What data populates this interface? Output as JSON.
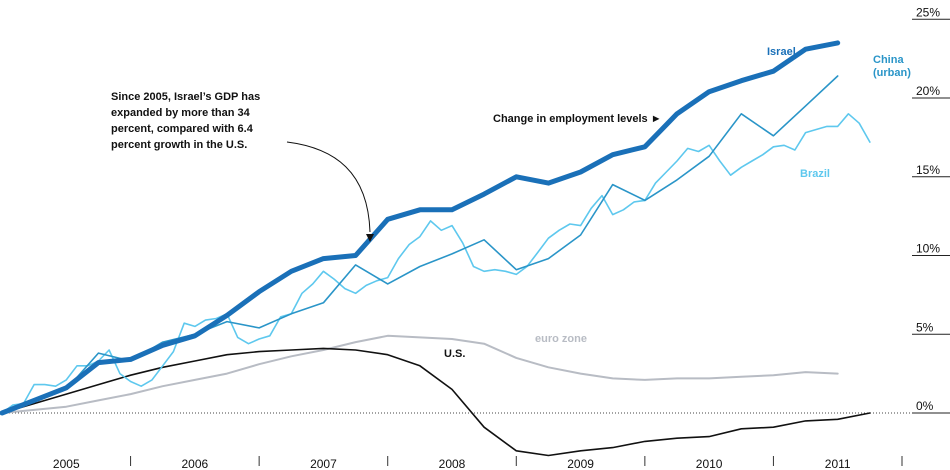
{
  "chart_data": {
    "type": "line",
    "xlim": [
      2005.0,
      2012.0
    ],
    "ylim": [
      -4,
      25
    ],
    "y_ticks": [
      {
        "value": 0,
        "label": "0%"
      },
      {
        "value": 5,
        "label": "5%"
      },
      {
        "value": 10,
        "label": "10%"
      },
      {
        "value": 15,
        "label": "15%"
      },
      {
        "value": 20,
        "label": "20%"
      },
      {
        "value": 25,
        "label": "25%"
      }
    ],
    "x_ticks": [
      "2005",
      "2006",
      "2007",
      "2008",
      "2009",
      "2010",
      "2011"
    ],
    "grid": false,
    "colors": {
      "israel": "#1a70b8",
      "china": "#2a95c8",
      "brazil": "#5ec8ee",
      "euro": "#b8bcc4",
      "us": "#111111",
      "axis": "#444444"
    },
    "annotation": "Since 2005, Israel's GDP has expanded by more than 34 percent, compared with 6.4 percent growth in the U.S.",
    "legend_note": "Change in employment levels ►",
    "series": [
      {
        "name": "Israel",
        "key": "israel",
        "x": [
          2005.0,
          2005.25,
          2005.5,
          2005.75,
          2006.0,
          2006.25,
          2006.5,
          2006.75,
          2007.0,
          2007.25,
          2007.5,
          2007.75,
          2008.0,
          2008.25,
          2008.5,
          2008.75,
          2009.0,
          2009.25,
          2009.5,
          2009.75,
          2010.0,
          2010.25,
          2010.5,
          2010.75,
          2011.0,
          2011.25,
          2011.5
        ],
        "y": [
          0,
          0.8,
          1.6,
          3.2,
          3.4,
          4.3,
          4.9,
          6.2,
          7.7,
          9.0,
          9.8,
          10.0,
          12.3,
          12.9,
          12.9,
          13.9,
          15.0,
          14.6,
          15.3,
          16.4,
          16.9,
          19.0,
          20.4,
          21.1,
          21.7,
          23.1,
          23.5
        ]
      },
      {
        "name": "China (urban)",
        "key": "china",
        "x": [
          2005.0,
          2005.5,
          2005.75,
          2006.0,
          2006.25,
          2006.5,
          2006.75,
          2007.0,
          2007.25,
          2007.5,
          2007.75,
          2008.0,
          2008.25,
          2008.5,
          2008.75,
          2009.0,
          2009.25,
          2009.5,
          2009.75,
          2010.0,
          2010.25,
          2010.5,
          2010.75,
          2011.0,
          2011.25,
          2011.5
        ],
        "y": [
          0,
          1.5,
          3.8,
          3.3,
          4.5,
          5.0,
          5.8,
          5.4,
          6.3,
          7.0,
          9.4,
          8.2,
          9.3,
          10.1,
          11.0,
          9.1,
          9.8,
          11.3,
          14.5,
          13.5,
          14.8,
          16.3,
          19.0,
          17.6,
          19.5,
          21.4
        ]
      },
      {
        "name": "Brazil",
        "key": "brazil",
        "x": [
          2005.0,
          2005.083,
          2005.167,
          2005.25,
          2005.333,
          2005.417,
          2005.5,
          2005.583,
          2005.667,
          2005.75,
          2005.833,
          2005.917,
          2006.0,
          2006.083,
          2006.167,
          2006.25,
          2006.333,
          2006.417,
          2006.5,
          2006.583,
          2006.667,
          2006.75,
          2006.833,
          2006.917,
          2007.0,
          2007.083,
          2007.167,
          2007.25,
          2007.333,
          2007.417,
          2007.5,
          2007.583,
          2007.667,
          2007.75,
          2007.833,
          2007.917,
          2008.0,
          2008.083,
          2008.167,
          2008.25,
          2008.333,
          2008.417,
          2008.5,
          2008.583,
          2008.667,
          2008.75,
          2008.833,
          2008.917,
          2009.0,
          2009.083,
          2009.167,
          2009.25,
          2009.333,
          2009.417,
          2009.5,
          2009.583,
          2009.667,
          2009.75,
          2009.833,
          2009.917,
          2010.0,
          2010.083,
          2010.167,
          2010.25,
          2010.333,
          2010.417,
          2010.5,
          2010.583,
          2010.667,
          2010.75,
          2010.833,
          2010.917,
          2011.0,
          2011.083,
          2011.167,
          2011.25,
          2011.333,
          2011.417,
          2011.5,
          2011.583,
          2011.667,
          2011.75
        ],
        "y": [
          0,
          0.5,
          0.6,
          1.8,
          1.8,
          1.7,
          2.1,
          3.0,
          3.0,
          3.3,
          4.0,
          2.5,
          2.0,
          1.7,
          2.1,
          3.0,
          3.9,
          5.7,
          5.5,
          5.9,
          6.0,
          6.3,
          4.8,
          4.4,
          4.7,
          4.9,
          6.1,
          6.3,
          7.6,
          8.2,
          9.0,
          8.5,
          7.9,
          7.6,
          8.1,
          8.4,
          8.6,
          9.8,
          10.7,
          11.2,
          12.2,
          11.6,
          11.9,
          10.8,
          9.3,
          9.0,
          9.1,
          9.0,
          8.8,
          9.3,
          10.2,
          11.1,
          11.6,
          12.0,
          11.9,
          13.0,
          13.8,
          12.6,
          12.9,
          13.4,
          13.5,
          14.6,
          15.3,
          16.0,
          16.8,
          16.6,
          17.0,
          16.0,
          15.1,
          15.6,
          16.0,
          16.4,
          16.9,
          17.0,
          16.7,
          17.8,
          18.0,
          18.2,
          18.2,
          19.0,
          18.4,
          17.2
        ]
      },
      {
        "name": "euro zone",
        "key": "euro",
        "x": [
          2005.0,
          2005.25,
          2005.5,
          2005.75,
          2006.0,
          2006.25,
          2006.5,
          2006.75,
          2007.0,
          2007.25,
          2007.5,
          2007.75,
          2008.0,
          2008.25,
          2008.5,
          2008.75,
          2009.0,
          2009.25,
          2009.5,
          2009.75,
          2010.0,
          2010.25,
          2010.5,
          2010.75,
          2011.0,
          2011.25,
          2011.5
        ],
        "y": [
          0,
          0.2,
          0.4,
          0.8,
          1.2,
          1.7,
          2.1,
          2.5,
          3.1,
          3.6,
          4.0,
          4.5,
          4.9,
          4.8,
          4.7,
          4.4,
          3.5,
          2.9,
          2.5,
          2.2,
          2.1,
          2.2,
          2.2,
          2.3,
          2.4,
          2.6,
          2.5
        ]
      },
      {
        "name": "U.S.",
        "key": "us",
        "x": [
          2005.0,
          2005.25,
          2005.5,
          2005.75,
          2006.0,
          2006.25,
          2006.5,
          2006.75,
          2007.0,
          2007.25,
          2007.5,
          2007.75,
          2008.0,
          2008.25,
          2008.5,
          2008.75,
          2009.0,
          2009.25,
          2009.5,
          2009.75,
          2010.0,
          2010.25,
          2010.5,
          2010.75,
          2011.0,
          2011.25,
          2011.5,
          2011.75
        ],
        "y": [
          0,
          0.6,
          1.2,
          1.8,
          2.4,
          2.9,
          3.3,
          3.7,
          3.9,
          4.0,
          4.1,
          4.0,
          3.7,
          3.0,
          1.5,
          -0.9,
          -2.4,
          -2.7,
          -2.4,
          -2.2,
          -1.8,
          -1.6,
          -1.5,
          -1.0,
          -0.9,
          -0.5,
          -0.4,
          0.0
        ]
      }
    ]
  }
}
